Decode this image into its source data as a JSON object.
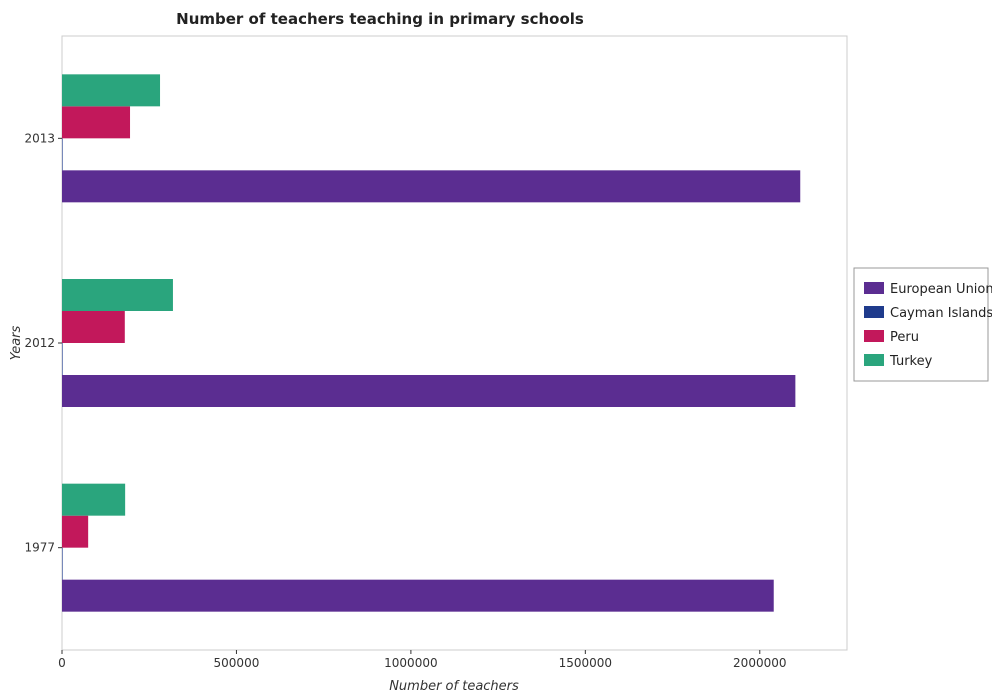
{
  "chart_data": {
    "type": "bar",
    "orientation": "horizontal",
    "title": "Number of teachers teaching in primary schools",
    "xlabel": "Number of teachers",
    "ylabel": "Years",
    "categories": [
      "1977",
      "2012",
      "2013"
    ],
    "xlim": [
      0,
      2250000
    ],
    "xticks": [
      0,
      500000,
      1000000,
      1500000,
      2000000
    ],
    "xtick_labels": [
      "0",
      "500000",
      "1000000",
      "1500000",
      "2000000"
    ],
    "grid": false,
    "legend_position": "right",
    "series": [
      {
        "name": "European Union",
        "color": "#5b2d91",
        "values": [
          2040000,
          2102000,
          2116000
        ]
      },
      {
        "name": "Cayman Islands",
        "color": "#1f3b8c",
        "values": [
          200,
          330,
          340
        ]
      },
      {
        "name": "Peru",
        "color": "#c2185b",
        "values": [
          75000,
          180000,
          195000
        ]
      },
      {
        "name": "Turkey",
        "color": "#2aa57d",
        "values": [
          181000,
          318000,
          281000
        ]
      }
    ]
  }
}
